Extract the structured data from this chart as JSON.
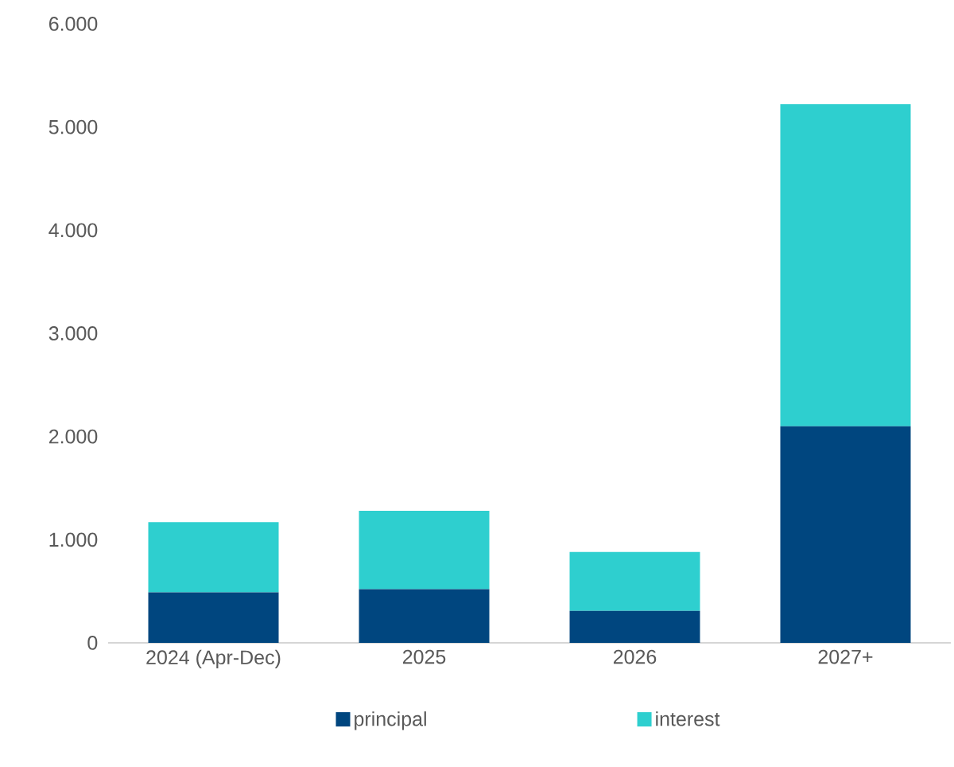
{
  "chart_data": {
    "type": "bar",
    "stacked": true,
    "categories": [
      "2024 (Apr-Dec)",
      "2025",
      "2026",
      "2027+"
    ],
    "series": [
      {
        "name": "principal",
        "color": "#00467f",
        "values": [
          490,
          520,
          310,
          2100
        ]
      },
      {
        "name": "interest",
        "color": "#2ecfcf",
        "values": [
          680,
          760,
          570,
          3120
        ]
      }
    ],
    "ylim": [
      0,
      6000
    ],
    "yticks": [
      0,
      {
        "value": 1000,
        "label": "1.000"
      },
      {
        "value": 2000,
        "label": "2.000"
      },
      {
        "value": 3000,
        "label": "3.000"
      },
      {
        "value": 4000,
        "label": "4.000"
      },
      {
        "value": 5000,
        "label": "5.000"
      },
      {
        "value": 6000,
        "label": "6.000"
      }
    ],
    "legend": "bottom"
  }
}
